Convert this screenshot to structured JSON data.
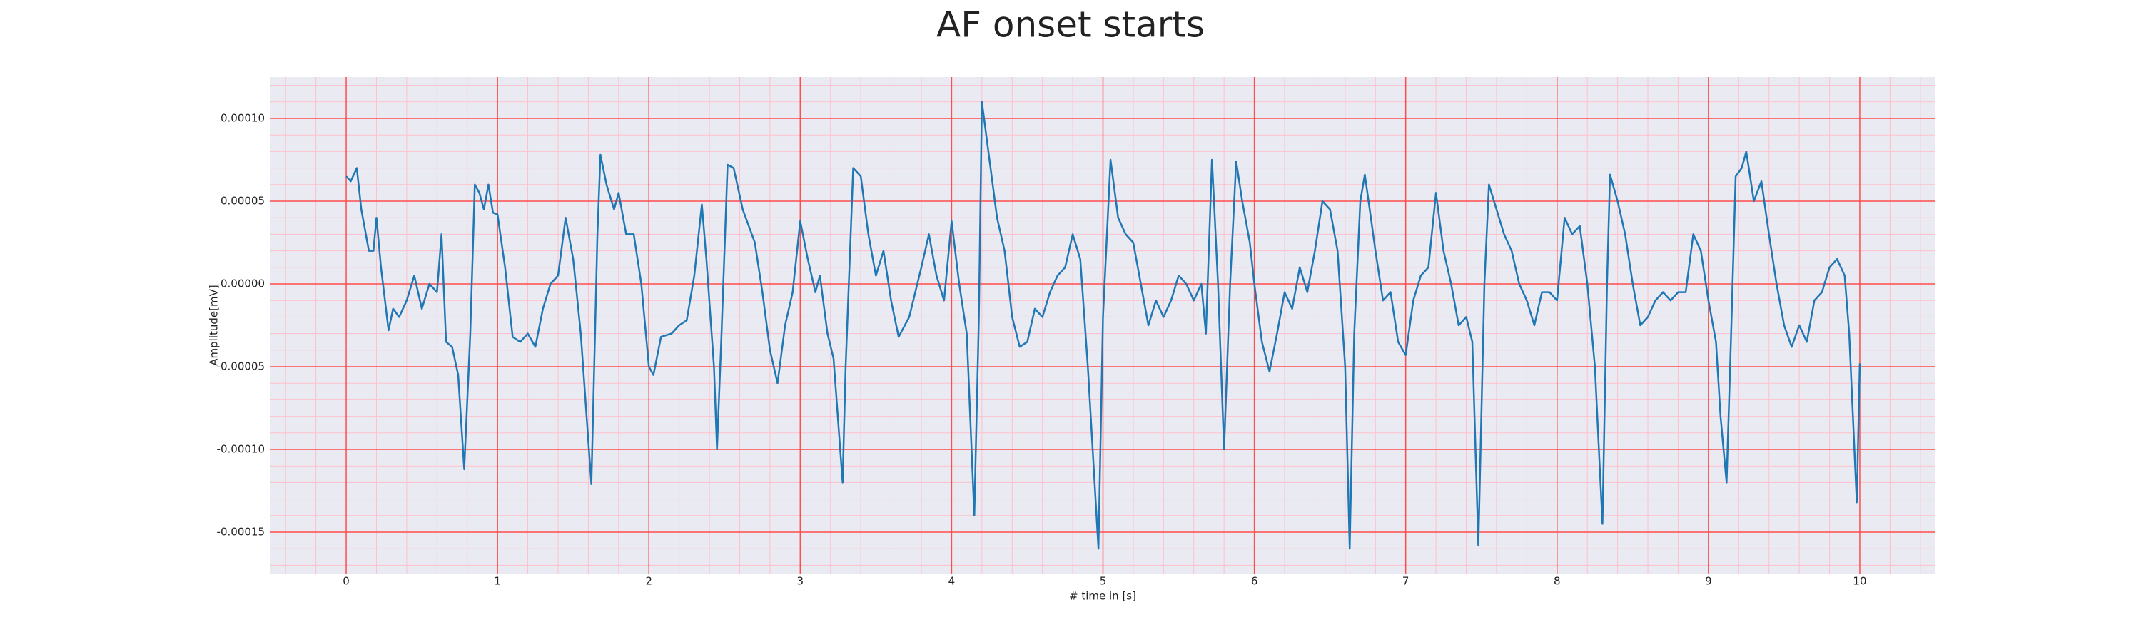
{
  "chart_data": {
    "type": "line",
    "title": "AF onset starts",
    "x_label": "# time in [s]",
    "y_label": "Amplitude[mV]",
    "xlim": [
      -0.5,
      10.5
    ],
    "ylim": [
      -0.000175,
      0.000125
    ],
    "xticks": [
      0,
      1,
      2,
      3,
      4,
      5,
      6,
      7,
      8,
      9,
      10
    ],
    "yticks": [
      {
        "value": -0.00015,
        "label": "-0.00015"
      },
      {
        "value": -0.0001,
        "label": "-0.00010"
      },
      {
        "value": -5e-05,
        "label": "-0.00005"
      },
      {
        "value": 0,
        "label": "0.00000"
      },
      {
        "value": 5e-05,
        "label": "0.00005"
      },
      {
        "value": 0.0001,
        "label": "0.00010"
      }
    ],
    "grid": true,
    "minor_grid": true,
    "grid_color": "#ff4d4d",
    "minor_grid_color": "#ffc0cb",
    "background": "#eaeaf2",
    "series": [
      {
        "color": "#1f77b4",
        "x": [
          0,
          0.03,
          0.07,
          0.1,
          0.15,
          0.18,
          0.2,
          0.23,
          0.28,
          0.31,
          0.35,
          0.4,
          0.45,
          0.5,
          0.55,
          0.6,
          0.63,
          0.66,
          0.7,
          0.74,
          0.78,
          0.82,
          0.85,
          0.88,
          0.91,
          0.94,
          0.97,
          1.0,
          1.05,
          1.1,
          1.15,
          1.2,
          1.25,
          1.3,
          1.35,
          1.4,
          1.45,
          1.5,
          1.55,
          1.62,
          1.66,
          1.68,
          1.72,
          1.77,
          1.8,
          1.85,
          1.9,
          1.95,
          2.0,
          2.03,
          2.08,
          2.15,
          2.2,
          2.25,
          2.3,
          2.35,
          2.38,
          2.43,
          2.45,
          2.48,
          2.52,
          2.56,
          2.62,
          2.7,
          2.75,
          2.8,
          2.85,
          2.9,
          2.95,
          3.0,
          3.05,
          3.1,
          3.13,
          3.18,
          3.22,
          3.28,
          3.3,
          3.35,
          3.4,
          3.45,
          3.5,
          3.55,
          3.6,
          3.65,
          3.72,
          3.8,
          3.85,
          3.9,
          3.95,
          4.0,
          4.05,
          4.1,
          4.15,
          4.18,
          4.2,
          4.25,
          4.3,
          4.35,
          4.4,
          4.45,
          4.5,
          4.55,
          4.6,
          4.65,
          4.7,
          4.75,
          4.8,
          4.85,
          4.9,
          4.97,
          5.0,
          5.05,
          5.1,
          5.15,
          5.2,
          5.25,
          5.3,
          5.35,
          5.4,
          5.45,
          5.5,
          5.55,
          5.6,
          5.65,
          5.68,
          5.72,
          5.76,
          5.8,
          5.84,
          5.88,
          5.92,
          5.97,
          6.0,
          6.05,
          6.1,
          6.15,
          6.2,
          6.25,
          6.3,
          6.35,
          6.4,
          6.45,
          6.5,
          6.55,
          6.6,
          6.63,
          6.66,
          6.7,
          6.73,
          6.77,
          6.8,
          6.85,
          6.9,
          6.95,
          7.0,
          7.05,
          7.1,
          7.15,
          7.2,
          7.25,
          7.3,
          7.35,
          7.4,
          7.44,
          7.48,
          7.52,
          7.55,
          7.6,
          7.65,
          7.7,
          7.75,
          7.8,
          7.85,
          7.9,
          7.95,
          8.0,
          8.05,
          8.1,
          8.15,
          8.2,
          8.25,
          8.3,
          8.33,
          8.35,
          8.4,
          8.45,
          8.5,
          8.55,
          8.6,
          8.65,
          8.7,
          8.75,
          8.8,
          8.85,
          8.9,
          8.95,
          9.0,
          9.05,
          9.08,
          9.12,
          9.15,
          9.18,
          9.22,
          9.25,
          9.3,
          9.35,
          9.4,
          9.45,
          9.5,
          9.55,
          9.6,
          9.65,
          9.7,
          9.75,
          9.8,
          9.85,
          9.9,
          9.93,
          9.98,
          10.0
        ],
        "values": [
          6.5e-05,
          6.2e-05,
          7e-05,
          4.5e-05,
          2e-05,
          2e-05,
          4e-05,
          1e-05,
          -2.8e-05,
          -1.5e-05,
          -2e-05,
          -1e-05,
          5e-06,
          -1.5e-05,
          0,
          -5e-06,
          3e-05,
          -3.5e-05,
          -3.8e-05,
          -5.5e-05,
          -0.000112,
          -3e-05,
          6e-05,
          5.5e-05,
          4.5e-05,
          6e-05,
          4.3e-05,
          4.2e-05,
          1e-05,
          -3.2e-05,
          -3.5e-05,
          -3e-05,
          -3.8e-05,
          -1.5e-05,
          0,
          5e-06,
          4e-05,
          1.5e-05,
          -3e-05,
          -0.000121,
          3e-05,
          7.8e-05,
          6e-05,
          4.5e-05,
          5.5e-05,
          3e-05,
          3e-05,
          0,
          -5e-05,
          -5.5e-05,
          -3.2e-05,
          -3e-05,
          -2.5e-05,
          -2.2e-05,
          5e-06,
          4.8e-05,
          1.5e-05,
          -5e-05,
          -0.0001,
          -3e-05,
          7.2e-05,
          7e-05,
          4.5e-05,
          2.5e-05,
          -5e-06,
          -4e-05,
          -6e-05,
          -2.5e-05,
          -5e-06,
          3.8e-05,
          1.5e-05,
          -5e-06,
          5e-06,
          -3e-05,
          -4.5e-05,
          -0.00012,
          -5e-05,
          7e-05,
          6.5e-05,
          3e-05,
          5e-06,
          2e-05,
          -1e-05,
          -3.2e-05,
          -2e-05,
          1e-05,
          3e-05,
          5e-06,
          -1e-05,
          3.8e-05,
          0,
          -3e-05,
          -0.00014,
          -2e-05,
          0.00011,
          7.5e-05,
          4e-05,
          2e-05,
          -2e-05,
          -3.8e-05,
          -3.5e-05,
          -1.5e-05,
          -2e-05,
          -5e-06,
          5e-06,
          1e-05,
          3e-05,
          1.5e-05,
          -5e-05,
          -0.00016,
          -2e-05,
          7.5e-05,
          4e-05,
          3e-05,
          2.5e-05,
          0,
          -2.5e-05,
          -1e-05,
          -2e-05,
          -1e-05,
          5e-06,
          0,
          -1e-05,
          0,
          -3e-05,
          7.5e-05,
          0,
          -0.0001,
          0,
          7.4e-05,
          5e-05,
          2.5e-05,
          0,
          -3.5e-05,
          -5.3e-05,
          -3e-05,
          -5e-06,
          -1.5e-05,
          1e-05,
          -5e-06,
          2e-05,
          5e-05,
          4.5e-05,
          2e-05,
          -5e-05,
          -0.00016,
          -3e-05,
          5e-05,
          6.6e-05,
          4e-05,
          2e-05,
          -1e-05,
          -5e-06,
          -3.5e-05,
          -4.3e-05,
          -1e-05,
          5e-06,
          1e-05,
          5.5e-05,
          2e-05,
          0,
          -2.5e-05,
          -2e-05,
          -3.5e-05,
          -0.000158,
          0,
          6e-05,
          4.5e-05,
          3e-05,
          2e-05,
          0,
          -1e-05,
          -2.5e-05,
          -5e-06,
          -5e-06,
          -1e-05,
          4e-05,
          3e-05,
          3.5e-05,
          0,
          -5e-05,
          -0.000145,
          0,
          6.6e-05,
          5e-05,
          3e-05,
          0,
          -2.5e-05,
          -2e-05,
          -1e-05,
          -5e-06,
          -1e-05,
          -5e-06,
          -5e-06,
          3e-05,
          2e-05,
          -1e-05,
          -3.5e-05,
          -8e-05,
          -0.00012,
          -3e-05,
          6.5e-05,
          7e-05,
          8e-05,
          5e-05,
          6.2e-05,
          3e-05,
          0,
          -2.5e-05,
          -3.8e-05,
          -2.5e-05,
          -3.5e-05,
          -1e-05,
          -5e-06,
          1e-05,
          1.5e-05,
          5e-06,
          -3e-05,
          -0.000132,
          -4.8e-05
        ]
      }
    ]
  }
}
